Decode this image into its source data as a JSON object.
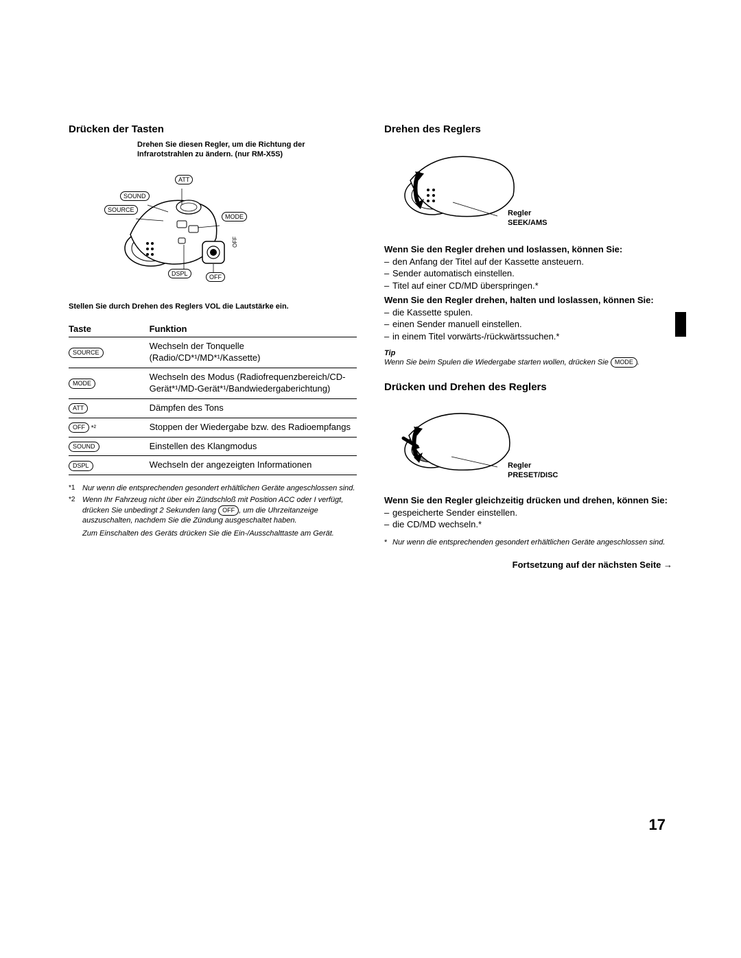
{
  "left": {
    "title": "Drücken der Tasten",
    "top_caption": "Drehen Sie diesen Regler, um die Richtung der Infrarotstrahlen zu ändern. (nur RM-X5S)",
    "labels": {
      "att": "ATT",
      "sound": "SOUND",
      "source": "SOURCE",
      "mode": "MODE",
      "off_side": "OFF",
      "dspl": "DSPL",
      "off": "OFF"
    },
    "bottom_caption": "Stellen Sie durch Drehen des Reglers VOL die Lautstärke ein.",
    "table": {
      "head_key": "Taste",
      "head_func": "Funktion",
      "rows": [
        {
          "btn": "SOURCE",
          "suffix": "",
          "func": "Wechseln der Tonquelle (Radio/CD*¹/MD*¹/Kassette)"
        },
        {
          "btn": "MODE",
          "suffix": "",
          "func": "Wechseln des Modus (Radiofrequenzbereich/CD-Gerät*¹/MD-Gerät*¹/Bandwiedergaberichtung)"
        },
        {
          "btn": "ATT",
          "suffix": "",
          "func": "Dämpfen des Tons"
        },
        {
          "btn": "OFF",
          "suffix": " *²",
          "func": "Stoppen der Wiedergabe bzw. des Radioempfangs"
        },
        {
          "btn": "SOUND",
          "suffix": "",
          "func": "Einstellen des Klangmodus"
        },
        {
          "btn": "DSPL",
          "suffix": "",
          "func": "Wechseln der angezeigten Informationen"
        }
      ]
    },
    "footnotes": {
      "f1_num": "*1",
      "f1": "Nur wenn die entsprechenden gesondert erhältlichen Geräte angeschlossen sind.",
      "f2_num": "*2",
      "f2a": "Wenn Ihr Fahrzeug nicht über ein Zündschloß mit Position ACC oder I verfügt, drücken Sie unbedingt 2 Sekunden lang ",
      "f2_btn": "OFF",
      "f2b": ", um die Uhrzeitanzeige auszuschalten, nachdem Sie die Zündung ausgeschaltet haben.",
      "extra": "Zum Einschalten des Geräts drücken Sie die Ein-/Ausschalttaste am Gerät."
    }
  },
  "right": {
    "sec1_title": "Drehen des Reglers",
    "sec1_caption": "Regler\nSEEK/AMS",
    "block1_head": "Wenn Sie den Regler drehen und loslassen, können Sie:",
    "block1_items": [
      "den Anfang der Titel auf der Kassette ansteuern.",
      "Sender automatisch einstellen.",
      "Titel auf einer CD/MD überspringen.*"
    ],
    "block2_head": "Wenn Sie den Regler drehen, halten und loslassen, können Sie:",
    "block2_items": [
      "die Kassette spulen.",
      "einen Sender manuell einstellen.",
      "in einem Titel vorwärts-/rückwärtssuchen.*"
    ],
    "tip_label": "Tip",
    "tip_a": "Wenn Sie beim Spulen die Wiedergabe starten wollen, drücken Sie ",
    "tip_btn": "MODE",
    "tip_b": ".",
    "sec2_title": "Drücken und Drehen des Reglers",
    "sec2_caption": "Regler\nPRESET/DISC",
    "block3_head": "Wenn Sie den Regler gleichzeitig drücken und drehen, können Sie:",
    "block3_items": [
      "gespeicherte Sender einstellen.",
      "die CD/MD wechseln.*"
    ],
    "star_note": "Nur wenn die entsprechenden gesondert erhältlichen Geräte angeschlossen sind.",
    "continue": "Fortsetzung auf der nächsten Seite →"
  },
  "page_num": "17"
}
